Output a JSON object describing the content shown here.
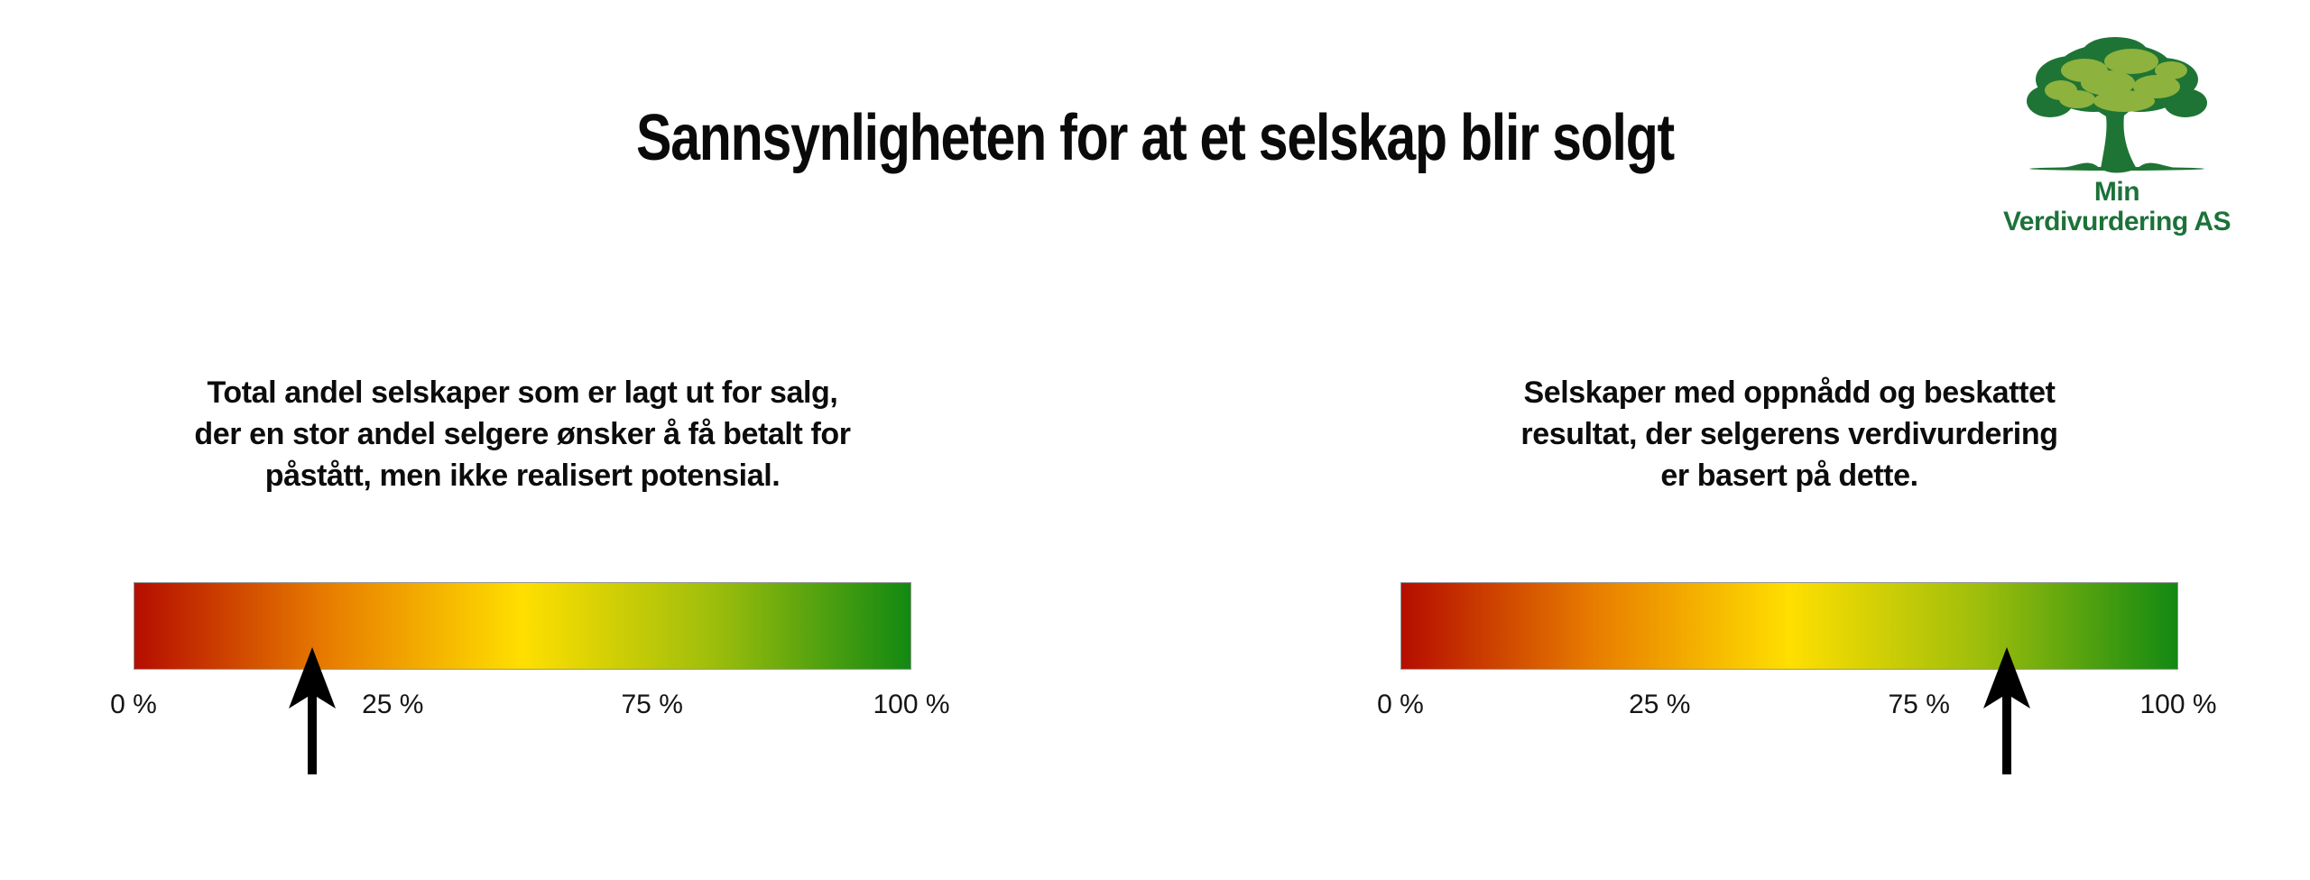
{
  "title": "Sannsynligheten for at et selskap blir solgt",
  "logo": {
    "line1": "Min",
    "line2": "Verdivurdering AS",
    "text_color": "#1c7239",
    "tree_dark_green": "#1e7435",
    "tree_light_green": "#8eb23e"
  },
  "scale_colors": [
    "#b50d00",
    "#e87d00",
    "#ffdf00",
    "#9cbd0c",
    "#128912"
  ],
  "panels": [
    {
      "description_lines": [
        "Total andel selskaper som er lagt ut for salg,",
        "der en stor andel selgere ønsker å få betalt for",
        "påstått, men ikke realisert potensial."
      ],
      "ticks": [
        "0 %",
        "25 %",
        "75 %",
        "100 %"
      ],
      "arrow_position_pct_of_bar": 23
    },
    {
      "description_lines": [
        "Selskaper med oppnådd og beskattet",
        "resultat, der selgerens verdivurdering",
        "er basert på dette."
      ],
      "ticks": [
        "0 %",
        "25 %",
        "75 %",
        "100 %"
      ],
      "arrow_position_pct_of_bar": 78
    }
  ],
  "chart_data": [
    {
      "type": "gauge",
      "title": "Total andel selskaper som er lagt ut for salg, der en stor andel selgere ønsker å få betalt for påstått, men ikke realisert potensial.",
      "scale": "red-to-green gradient, left=low right=high",
      "tick_labels": [
        "0 %",
        "25 %",
        "75 %",
        "100 %"
      ],
      "tick_positions_pct_of_bar": [
        0,
        33.3,
        66.7,
        100
      ],
      "marker": "black up-arrow",
      "marker_position_pct_of_bar": 23,
      "gradient_stops": [
        "#b50d00",
        "#e87d00",
        "#ffdf00",
        "#9cbd0c",
        "#128912"
      ]
    },
    {
      "type": "gauge",
      "title": "Selskaper med oppnådd og beskattet resultat, der selgerens verdivurdering er basert på dette.",
      "scale": "red-to-green gradient, left=low right=high",
      "tick_labels": [
        "0 %",
        "25 %",
        "75 %",
        "100 %"
      ],
      "tick_positions_pct_of_bar": [
        0,
        33.3,
        66.7,
        100
      ],
      "marker": "black up-arrow",
      "marker_position_pct_of_bar": 78,
      "gradient_stops": [
        "#b50d00",
        "#e87d00",
        "#ffdf00",
        "#9cbd0c",
        "#128912"
      ]
    }
  ]
}
